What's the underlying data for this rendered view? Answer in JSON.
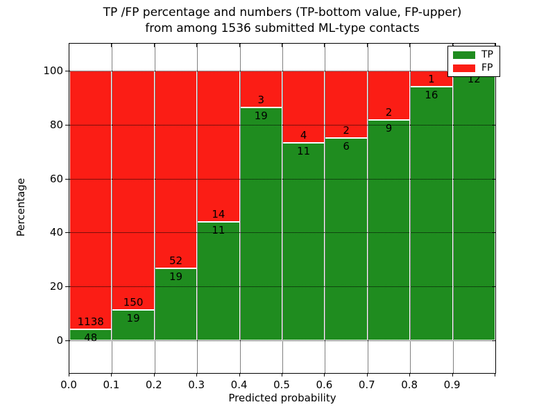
{
  "figure": {
    "title_line1": "TP /FP percentage and numbers (TP-bottom value, FP-upper)",
    "title_line2": "from among 1536 submitted ML-type contacts",
    "xlabel": "Predicted probability",
    "ylabel": "Percentage"
  },
  "legend": {
    "position": "upper right",
    "items": [
      {
        "label": "TP",
        "color": "#1f8c1f"
      },
      {
        "label": "FP",
        "color": "#fb1d15"
      }
    ]
  },
  "axes": {
    "x_tick_labels": [
      "0.0",
      "0.1",
      "0.2",
      "0.3",
      "0.4",
      "0.5",
      "0.6",
      "0.7",
      "0.8",
      "0.9"
    ],
    "y_tick_labels": [
      "0",
      "20",
      "40",
      "60",
      "80",
      "100"
    ],
    "y_tick_values": [
      0,
      20,
      40,
      60,
      80,
      100
    ]
  },
  "chart_data": {
    "type": "bar",
    "stacked": true,
    "normalized_to_percent": true,
    "title": "TP /FP percentage and numbers (TP-bottom value, FP-upper) from among 1536 submitted ML-type contacts",
    "xlabel": "Predicted probability",
    "ylabel": "Percentage",
    "total_contacts": 1536,
    "bin_edges": [
      0.0,
      0.1,
      0.2,
      0.3,
      0.4,
      0.5,
      0.6,
      0.7,
      0.8,
      0.9,
      1.0
    ],
    "categories": [
      "0.0-0.1",
      "0.1-0.2",
      "0.2-0.3",
      "0.3-0.4",
      "0.4-0.5",
      "0.5-0.6",
      "0.6-0.7",
      "0.7-0.8",
      "0.8-0.9",
      "0.9-1.0"
    ],
    "series": [
      {
        "name": "TP",
        "color": "#1f8c1f",
        "counts": [
          48,
          19,
          19,
          11,
          19,
          11,
          6,
          9,
          16,
          12
        ]
      },
      {
        "name": "FP",
        "color": "#fb1d15",
        "counts": [
          1138,
          150,
          52,
          14,
          3,
          4,
          2,
          2,
          1,
          0
        ]
      }
    ],
    "tp_percent": [
      4.05,
      11.24,
      26.76,
      44.0,
      86.36,
      73.33,
      75.0,
      81.82,
      94.12,
      100.0
    ],
    "xlim": [
      0.0,
      1.0
    ],
    "ylim": [
      -10,
      110
    ],
    "grid": true,
    "grid_style": "dotted",
    "legend_position": "upper right"
  }
}
